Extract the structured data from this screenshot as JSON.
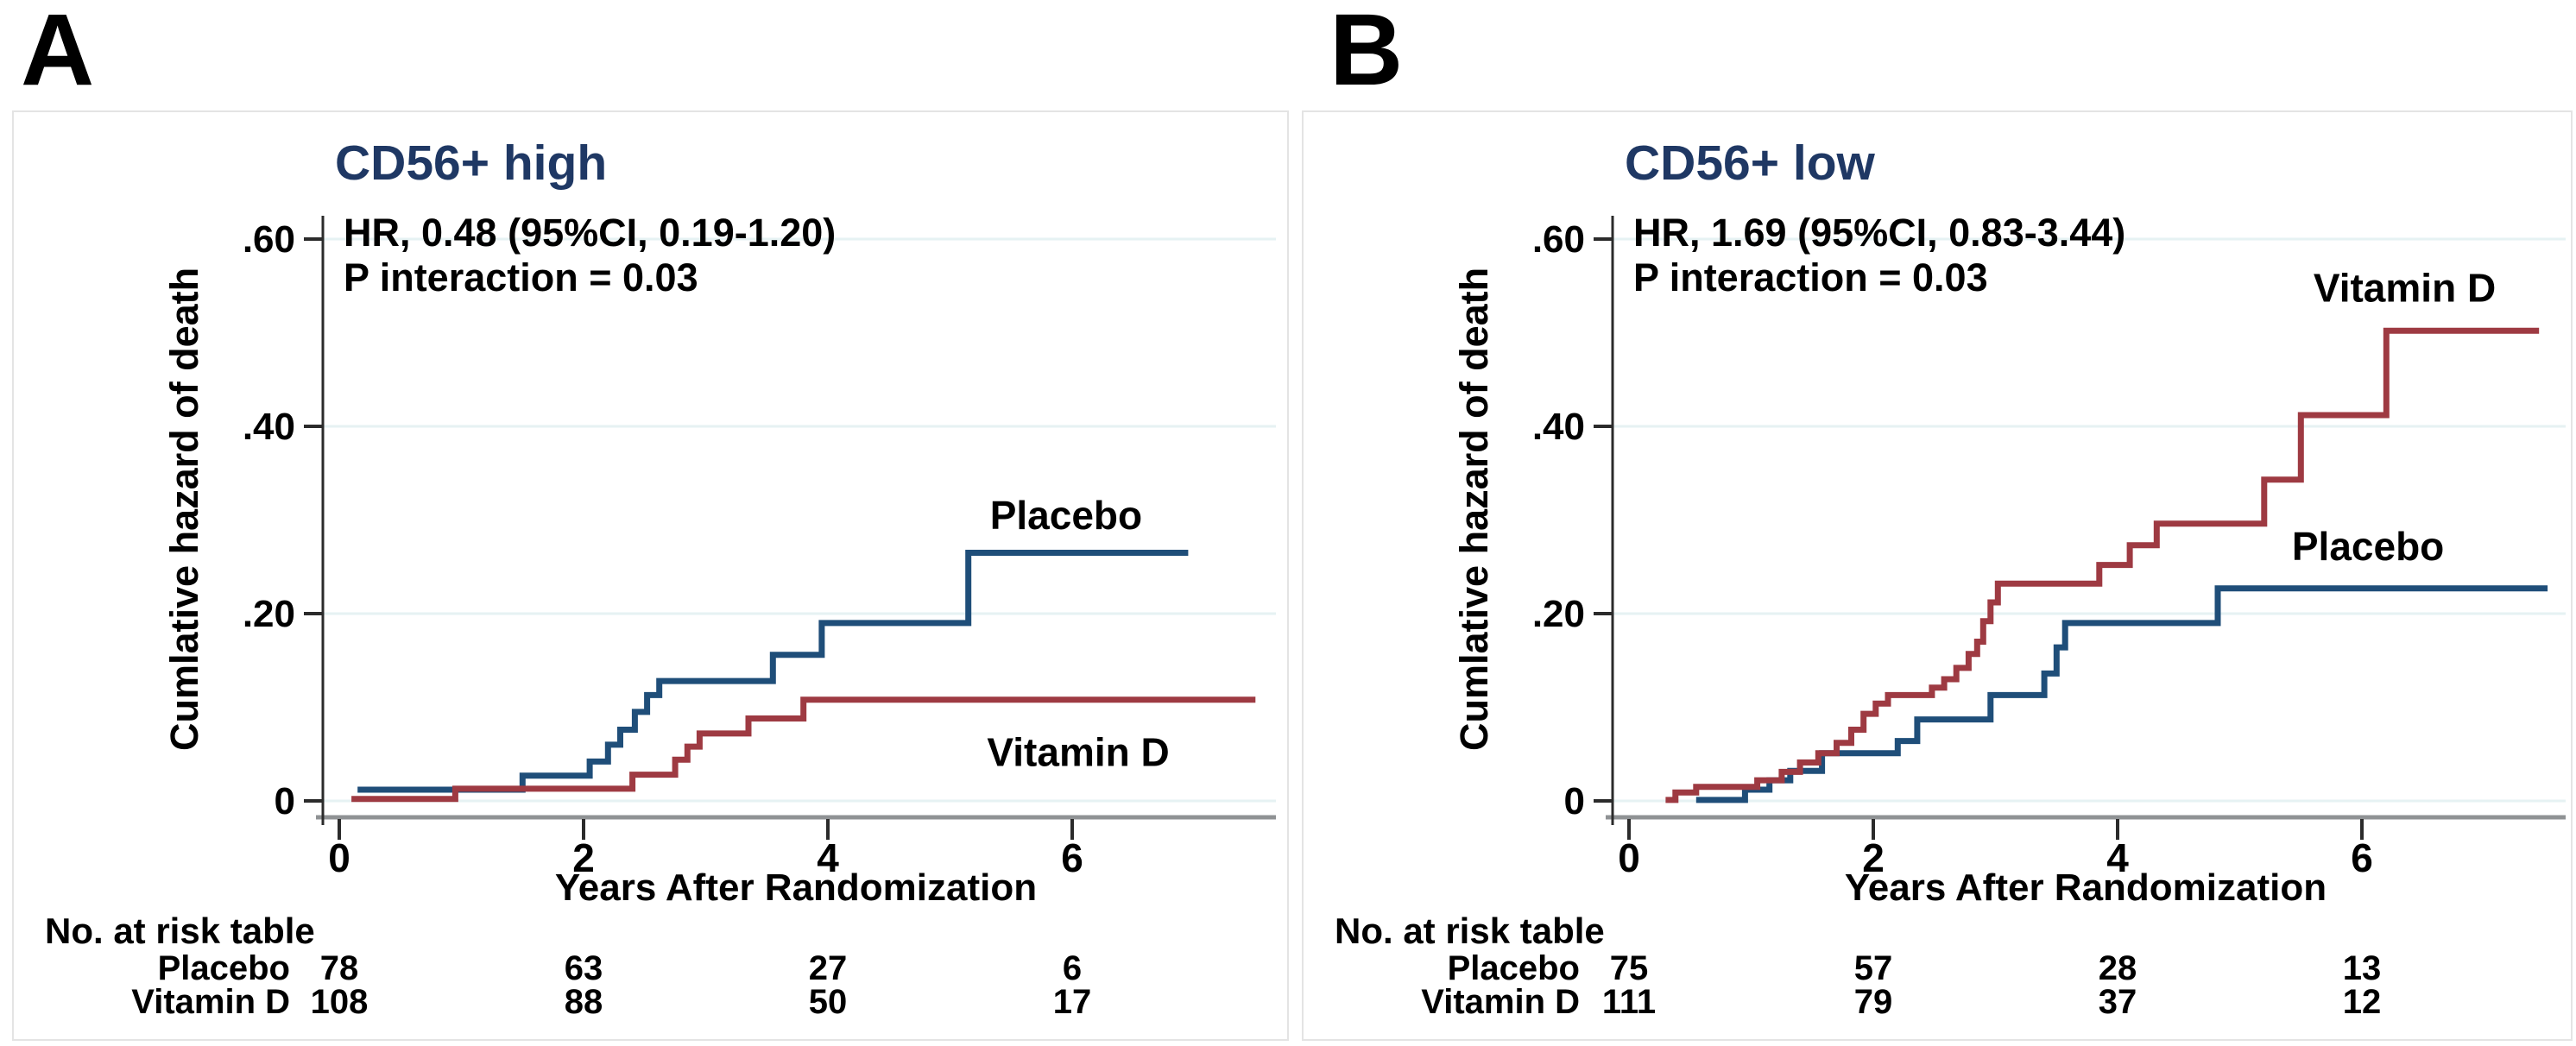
{
  "figure": {
    "panels": [
      {
        "letter": "A"
      },
      {
        "letter": "B"
      }
    ]
  },
  "colors": {
    "placebo_line": "#1f4e79",
    "vitamin_d_line": "#9e3a42",
    "title_text": "#1f3864",
    "gridline": "#e6f2f3",
    "x_axis": "#8f9294",
    "y_axis": "#2b2b2b",
    "tick": "#2b2b2b",
    "text": "#000000"
  },
  "chart_data": [
    {
      "type": "line",
      "panel_label": "A",
      "title": "CD56+ high",
      "annotation_hr": "HR, 0.48 (95%CI, 0.19-1.20)",
      "annotation_p": "P interaction = 0.03",
      "xlabel": "Years After Randomization",
      "ylabel": "Cumlative hazard of death",
      "xlim": [
        0,
        7.7
      ],
      "ylim": [
        0,
        0.62
      ],
      "xticks": [
        0,
        2,
        4,
        6
      ],
      "yticks": [
        0.6,
        0.4,
        0.2,
        0
      ],
      "ytick_labels": [
        ".60",
        ".40",
        ".20",
        "0"
      ],
      "grid": true,
      "legend_position": "labels-on-plot",
      "series": [
        {
          "name": "Placebo",
          "color": "#1f4e79",
          "label_x": 5.95,
          "label_y": 0.305,
          "steps": [
            [
              0.15,
              0.012
            ],
            [
              1.5,
              0.027
            ],
            [
              2.05,
              0.042
            ],
            [
              2.2,
              0.06
            ],
            [
              2.3,
              0.076
            ],
            [
              2.42,
              0.095
            ],
            [
              2.52,
              0.113
            ],
            [
              2.62,
              0.128
            ],
            [
              3.55,
              0.156
            ],
            [
              3.95,
              0.19
            ],
            [
              5.15,
              0.265
            ]
          ],
          "end_x": 6.95
        },
        {
          "name": "Vitamin D",
          "color": "#9e3a42",
          "label_x": 6.05,
          "label_y": 0.052,
          "steps": [
            [
              0.1,
              0.002
            ],
            [
              0.95,
              0.013
            ],
            [
              2.4,
              0.028
            ],
            [
              2.75,
              0.044
            ],
            [
              2.85,
              0.058
            ],
            [
              2.95,
              0.072
            ],
            [
              3.35,
              0.088
            ],
            [
              3.8,
              0.108
            ]
          ],
          "end_x": 7.5
        }
      ],
      "risk_table": {
        "header": "No. at risk table",
        "rows": [
          {
            "label": "Placebo",
            "values": [
              78,
              63,
              27,
              6
            ]
          },
          {
            "label": "Vitamin D",
            "values": [
              108,
              88,
              50,
              17
            ]
          }
        ]
      }
    },
    {
      "type": "line",
      "panel_label": "B",
      "title": "CD56+ low",
      "annotation_hr": "HR, 1.69 (95%CI, 0.83-3.44)",
      "annotation_p": "P interaction = 0.03",
      "xlabel": "Years After Randomization",
      "ylabel": "Cumlative hazard of death",
      "xlim": [
        0,
        7.7
      ],
      "ylim": [
        0,
        0.62
      ],
      "xticks": [
        0,
        2,
        4,
        6
      ],
      "yticks": [
        0.6,
        0.4,
        0.2,
        0
      ],
      "ytick_labels": [
        ".60",
        ".40",
        ".20",
        "0"
      ],
      "grid": true,
      "legend_position": "labels-on-plot",
      "series": [
        {
          "name": "Placebo",
          "color": "#1f4e79",
          "label_x": 6.05,
          "label_y": 0.272,
          "steps": [
            [
              0.55,
              0.001
            ],
            [
              0.95,
              0.012
            ],
            [
              1.15,
              0.022
            ],
            [
              1.32,
              0.032
            ],
            [
              1.58,
              0.051
            ],
            [
              2.2,
              0.064
            ],
            [
              2.36,
              0.087
            ],
            [
              2.96,
              0.113
            ],
            [
              3.4,
              0.136
            ],
            [
              3.5,
              0.164
            ],
            [
              3.57,
              0.19
            ],
            [
              4.82,
              0.227
            ]
          ],
          "end_x": 7.52
        },
        {
          "name": "Vitamin D",
          "color": "#9e3a42",
          "label_x": 6.35,
          "label_y": 0.548,
          "steps": [
            [
              0.3,
              0.001
            ],
            [
              0.38,
              0.009
            ],
            [
              0.55,
              0.015
            ],
            [
              1.05,
              0.022
            ],
            [
              1.25,
              0.031
            ],
            [
              1.4,
              0.041
            ],
            [
              1.55,
              0.051
            ],
            [
              1.7,
              0.062
            ],
            [
              1.82,
              0.076
            ],
            [
              1.92,
              0.093
            ],
            [
              2.02,
              0.104
            ],
            [
              2.12,
              0.113
            ],
            [
              2.48,
              0.121
            ],
            [
              2.58,
              0.13
            ],
            [
              2.68,
              0.142
            ],
            [
              2.78,
              0.157
            ],
            [
              2.85,
              0.17
            ],
            [
              2.9,
              0.192
            ],
            [
              2.96,
              0.212
            ],
            [
              3.02,
              0.232
            ],
            [
              3.85,
              0.252
            ],
            [
              4.1,
              0.273
            ],
            [
              4.32,
              0.296
            ],
            [
              5.2,
              0.343
            ],
            [
              5.5,
              0.412
            ],
            [
              6.2,
              0.502
            ]
          ],
          "end_x": 7.45
        }
      ],
      "risk_table": {
        "header": "No. at risk table",
        "rows": [
          {
            "label": "Placebo",
            "values": [
              75,
              57,
              28,
              13
            ]
          },
          {
            "label": "Vitamin D",
            "values": [
              111,
              79,
              37,
              12
            ]
          }
        ]
      }
    }
  ]
}
